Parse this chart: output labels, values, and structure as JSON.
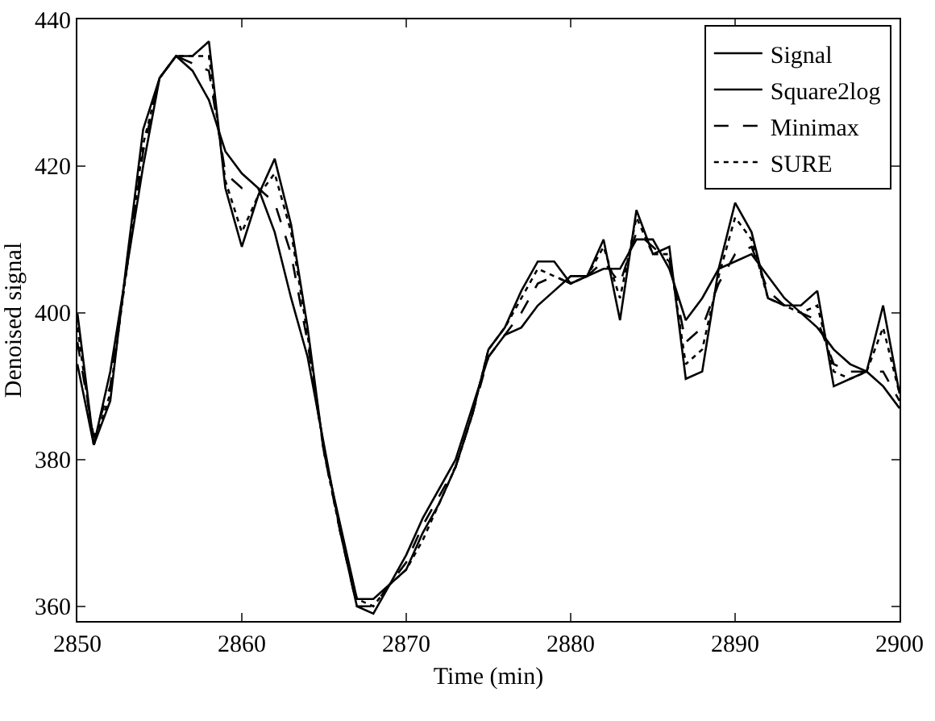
{
  "chart_data": {
    "type": "line",
    "xlabel": "Time (min)",
    "ylabel": "Denoised signal",
    "x": [
      2850,
      2851,
      2852,
      2853,
      2854,
      2855,
      2856,
      2857,
      2858,
      2859,
      2860,
      2861,
      2862,
      2863,
      2864,
      2865,
      2866,
      2867,
      2868,
      2869,
      2870,
      2871,
      2872,
      2873,
      2874,
      2875,
      2876,
      2877,
      2878,
      2879,
      2880,
      2881,
      2882,
      2883,
      2884,
      2885,
      2886,
      2887,
      2888,
      2889,
      2890,
      2891,
      2892,
      2893,
      2894,
      2895,
      2896,
      2897,
      2898,
      2899,
      2900
    ],
    "series": [
      {
        "name": "Signal",
        "color": "#000000",
        "line_style": "solid",
        "values": [
          400,
          382,
          388,
          407,
          425,
          432,
          435,
          435,
          437,
          417,
          409,
          416,
          421,
          412,
          398,
          381,
          371,
          361,
          361,
          363,
          365,
          370,
          374,
          379,
          386,
          395,
          398,
          403,
          407,
          407,
          404,
          405,
          410,
          399,
          414,
          408,
          409,
          391,
          392,
          406,
          415,
          411,
          402,
          401,
          401,
          403,
          390,
          391,
          392,
          401,
          389
        ]
      },
      {
        "name": "Square2log",
        "color": "#000000",
        "line_style": "solid",
        "values": [
          393,
          382,
          392,
          406,
          420,
          432,
          435,
          433,
          429,
          422,
          419,
          417,
          411,
          402,
          394,
          382,
          370,
          360,
          359,
          363,
          367,
          372,
          376,
          380,
          387,
          394,
          397,
          398,
          401,
          403,
          405,
          405,
          406,
          406,
          410,
          410,
          406,
          399,
          402,
          406,
          407,
          408,
          405,
          402,
          400,
          398,
          395,
          393,
          392,
          390,
          387
        ]
      },
      {
        "name": "Minimax",
        "color": "#000000",
        "line_style": "dashed",
        "values": [
          396,
          383,
          390,
          406,
          422,
          432,
          435,
          434,
          433,
          419,
          417,
          417,
          415,
          408,
          396,
          381,
          370,
          360,
          360,
          363,
          366,
          371,
          375,
          379,
          386,
          394,
          397,
          400,
          404,
          405,
          404,
          405,
          407,
          404,
          411,
          409,
          407,
          396,
          398,
          404,
          408,
          409,
          403,
          401,
          400,
          399,
          393,
          392,
          392,
          392,
          388
        ]
      },
      {
        "name": "SURE",
        "color": "#000000",
        "line_style": "dotted",
        "values": [
          398,
          382,
          389,
          406,
          423,
          432,
          435,
          435,
          435,
          418,
          411,
          416,
          419,
          411,
          397,
          381,
          370,
          361,
          360,
          363,
          365,
          369,
          374,
          379,
          386,
          395,
          398,
          402,
          406,
          405,
          404,
          405,
          409,
          402,
          413,
          408,
          408,
          393,
          395,
          405,
          413,
          410,
          402,
          401,
          400,
          401,
          392,
          391,
          392,
          398,
          389
        ]
      }
    ],
    "xlim": [
      2850,
      2900
    ],
    "xticks": [
      2850,
      2860,
      2870,
      2880,
      2890,
      2900
    ],
    "ylim": [
      358,
      440
    ],
    "yticks": [
      360,
      380,
      400,
      420,
      440
    ],
    "grid": false,
    "legend": "top right"
  }
}
